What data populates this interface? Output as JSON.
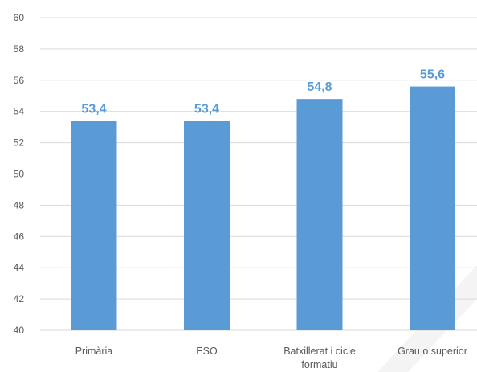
{
  "chart_data": {
    "type": "bar",
    "categories": [
      "Primària",
      "ESO",
      "Batxillerat i cicle formatiu",
      "Grau o superior"
    ],
    "category_label_lines": [
      [
        "Primària"
      ],
      [
        "ESO"
      ],
      [
        "Batxillerat i cicle",
        "formatiu"
      ],
      [
        "Grau o superior"
      ]
    ],
    "values": [
      53.4,
      53.4,
      54.8,
      55.6
    ],
    "data_labels": [
      "53,4",
      "53,4",
      "54,8",
      "55,6"
    ],
    "ylim": [
      40,
      60
    ],
    "yticks": [
      40,
      42,
      44,
      46,
      48,
      50,
      52,
      54,
      56,
      58,
      60
    ],
    "title": "",
    "xlabel": "",
    "ylabel": "",
    "grid": true,
    "legend": "none",
    "colors": {
      "bar": "#5b9bd5",
      "data_label": "#5b9bd5",
      "grid": "#d9d9d9",
      "axis_text": "#595959"
    }
  }
}
